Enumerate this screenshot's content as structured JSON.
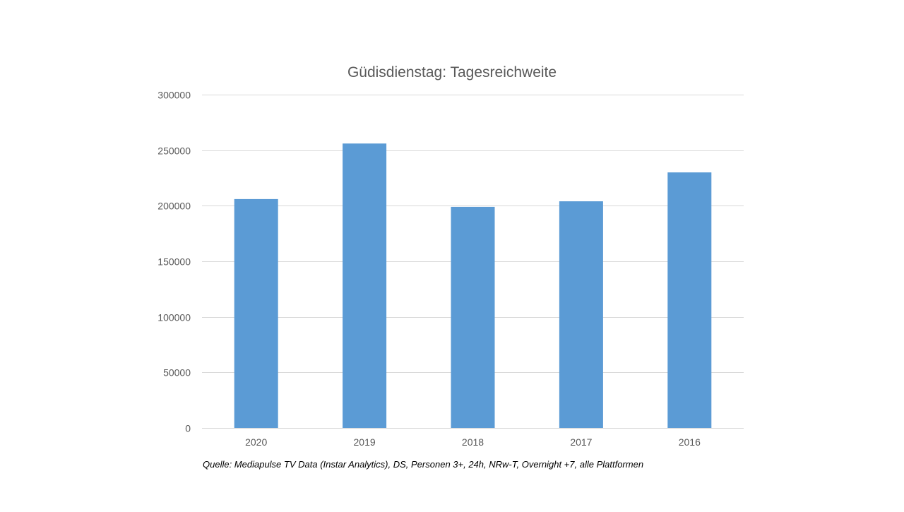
{
  "colors": {
    "bar": "#5b9bd5",
    "text": "#595959",
    "grid": "#d9d9d9"
  },
  "chart_data": {
    "type": "bar",
    "title": "Güdisdienstag: Tagesreichweite",
    "xlabel": "",
    "ylabel": "",
    "categories": [
      "2020",
      "2019",
      "2018",
      "2017",
      "2016"
    ],
    "values": [
      206000,
      256000,
      199000,
      204000,
      230000
    ],
    "ylim": [
      0,
      300000
    ],
    "yticks": [
      0,
      50000,
      100000,
      150000,
      200000,
      250000,
      300000
    ],
    "ytick_labels": [
      "0",
      "50000",
      "100000",
      "150000",
      "200000",
      "250000",
      "300000"
    ],
    "grid": true,
    "legend": "none"
  },
  "source_note": "Quelle: Mediapulse TV Data (Instar Analytics), DS, Personen 3+, 24h, NRw-T, Overnight +7, alle Plattformen"
}
